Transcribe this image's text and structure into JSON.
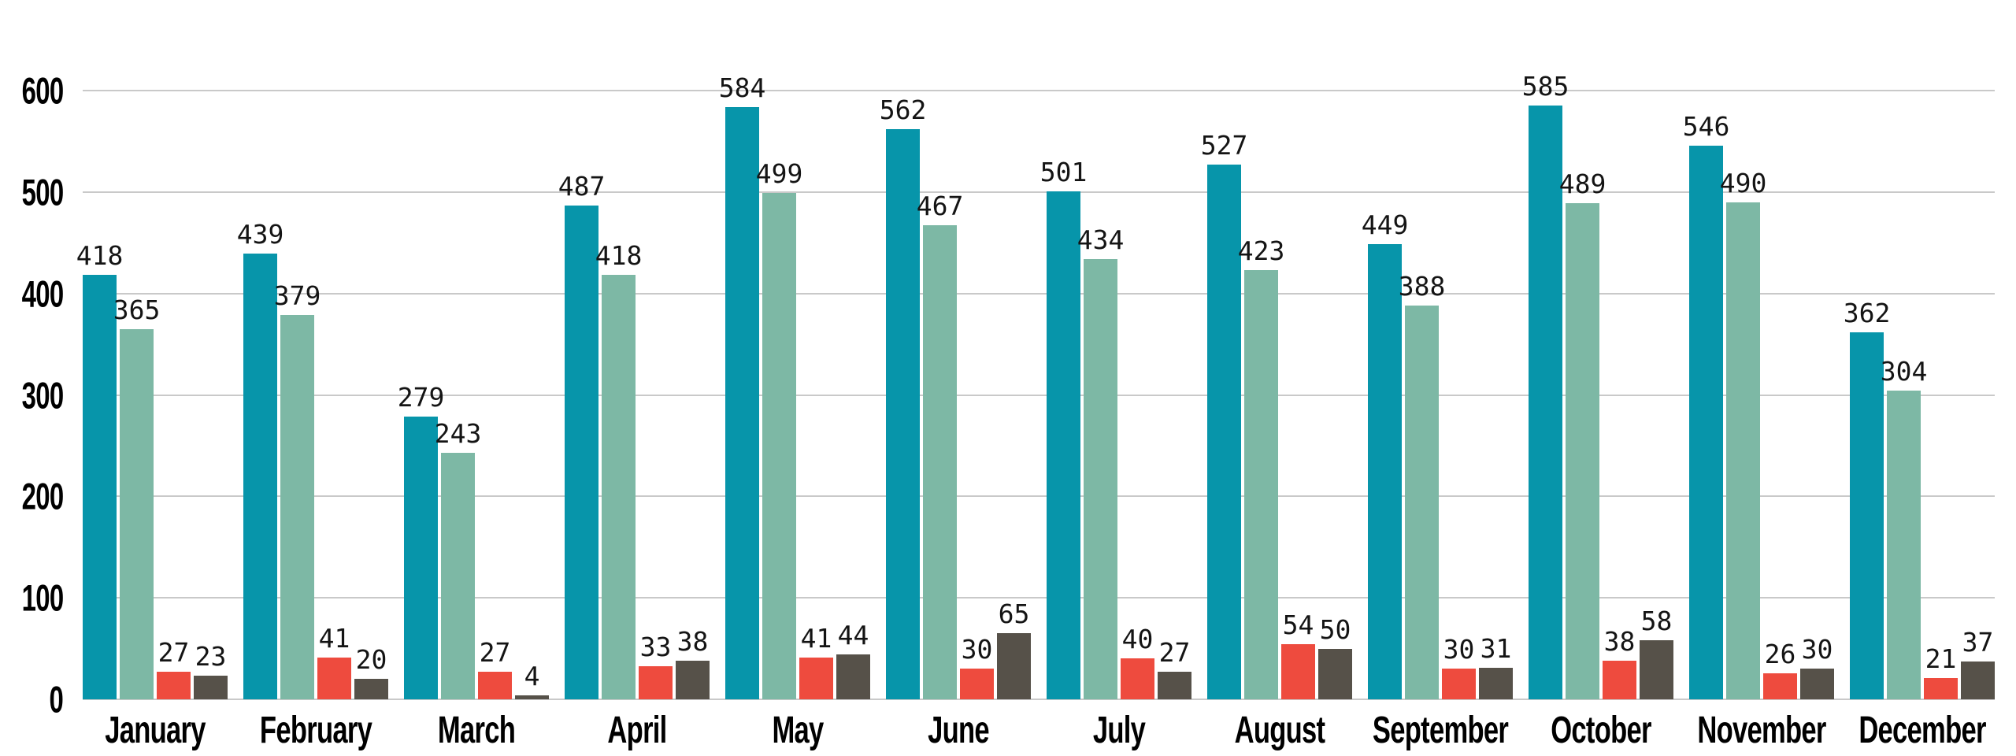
{
  "chart_data": {
    "type": "bar",
    "title": "",
    "xlabel": "",
    "ylabel": "",
    "categories": [
      "January",
      "February",
      "March",
      "April",
      "May",
      "June",
      "July",
      "August",
      "September",
      "October",
      "November",
      "December"
    ],
    "series": [
      {
        "name": "teal",
        "color": "#0795aa",
        "values": [
          418,
          439,
          279,
          487,
          584,
          562,
          501,
          527,
          449,
          585,
          546,
          362
        ]
      },
      {
        "name": "sage",
        "color": "#7db8a5",
        "values": [
          365,
          379,
          243,
          418,
          499,
          467,
          434,
          423,
          388,
          489,
          490,
          304
        ]
      },
      {
        "name": "red",
        "color": "#ee4b3e",
        "values": [
          27,
          41,
          27,
          33,
          41,
          30,
          40,
          54,
          30,
          38,
          26,
          21
        ]
      },
      {
        "name": "dark-gray",
        "color": "#565149",
        "values": [
          23,
          20,
          4,
          38,
          44,
          65,
          27,
          50,
          31,
          58,
          30,
          37
        ]
      }
    ],
    "ylim": [
      0,
      600
    ],
    "yticks": [
      0,
      100,
      200,
      300,
      400,
      500,
      600
    ],
    "grid": true,
    "legend_position": "none",
    "value_labels": true
  },
  "axis": {
    "ytick_labels": [
      "0",
      "100",
      "200",
      "300",
      "400",
      "500",
      "600"
    ]
  },
  "colors": {
    "background": "#ffffff",
    "gridline": "#c9c9c9",
    "value_label_text": "#141414",
    "axis_label_text": "#000000"
  }
}
